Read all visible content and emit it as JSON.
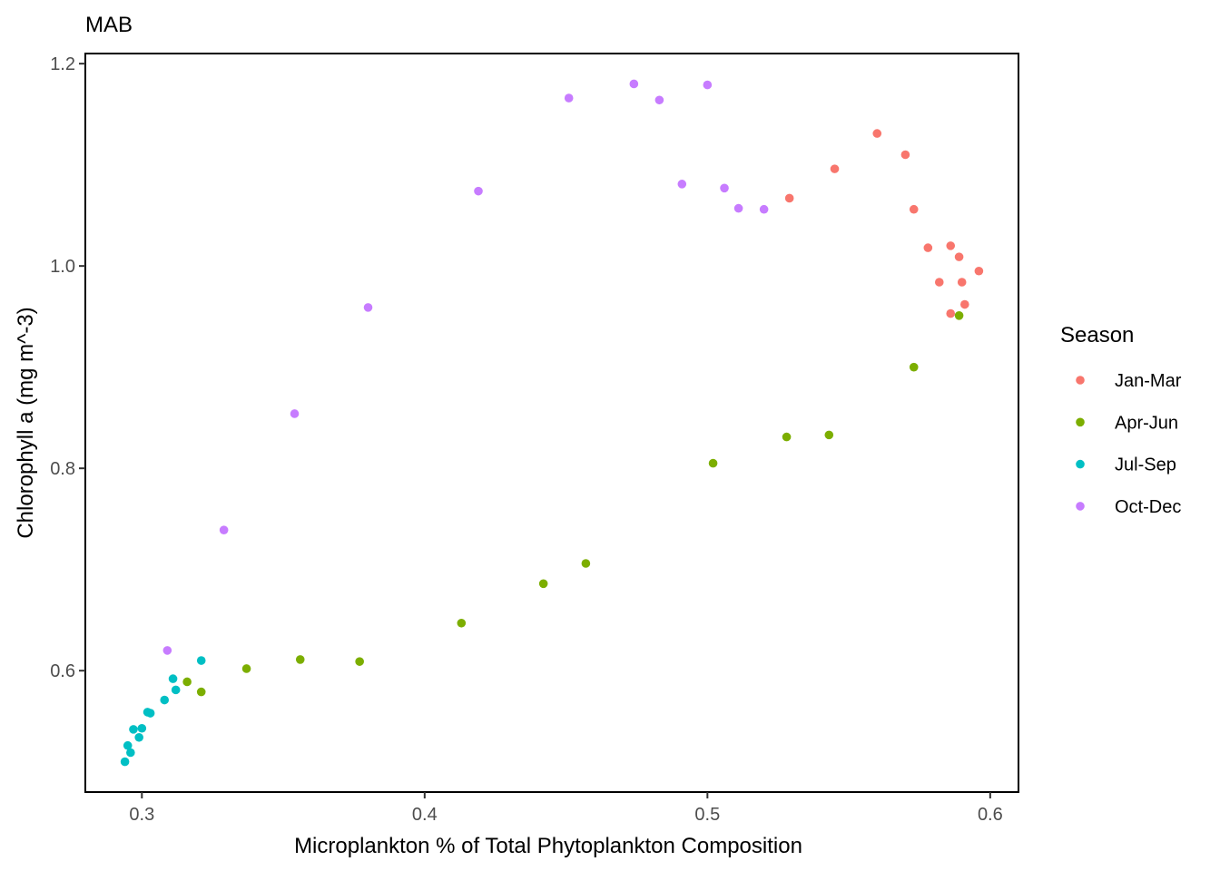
{
  "chart_data": {
    "type": "scatter",
    "title": "MAB",
    "xlabel": "Microplankton % of Total Phytoplankton Composition",
    "ylabel": "Chlorophyll a (mg m^-3)",
    "xlim": [
      0.28,
      0.61
    ],
    "ylim": [
      0.48,
      1.21
    ],
    "xticks": [
      0.3,
      0.4,
      0.5,
      0.6
    ],
    "xtick_labels": [
      "0.3",
      "0.4",
      "0.5",
      "0.6"
    ],
    "yticks": [
      0.6,
      0.8,
      1.0,
      1.2
    ],
    "ytick_labels": [
      "0.6",
      "0.8",
      "1.0",
      "1.2"
    ],
    "grid": false,
    "legend": {
      "title": "Season",
      "position": "right"
    },
    "series": [
      {
        "name": "Jan-Mar",
        "color": "#F8766D",
        "points": [
          [
            0.529,
            1.067
          ],
          [
            0.545,
            1.096
          ],
          [
            0.56,
            1.131
          ],
          [
            0.57,
            1.11
          ],
          [
            0.573,
            1.056
          ],
          [
            0.578,
            1.018
          ],
          [
            0.582,
            0.984
          ],
          [
            0.586,
            1.02
          ],
          [
            0.586,
            0.953
          ],
          [
            0.589,
            1.009
          ],
          [
            0.59,
            0.984
          ],
          [
            0.591,
            0.962
          ],
          [
            0.596,
            0.995
          ]
        ]
      },
      {
        "name": "Apr-Jun",
        "color": "#7CAE00",
        "points": [
          [
            0.316,
            0.589
          ],
          [
            0.321,
            0.579
          ],
          [
            0.337,
            0.602
          ],
          [
            0.356,
            0.611
          ],
          [
            0.377,
            0.609
          ],
          [
            0.413,
            0.647
          ],
          [
            0.442,
            0.686
          ],
          [
            0.457,
            0.706
          ],
          [
            0.502,
            0.805
          ],
          [
            0.528,
            0.831
          ],
          [
            0.543,
            0.833
          ],
          [
            0.573,
            0.9
          ],
          [
            0.589,
            0.951
          ]
        ]
      },
      {
        "name": "Jul-Sep",
        "color": "#00BFC4",
        "points": [
          [
            0.294,
            0.51
          ],
          [
            0.295,
            0.526
          ],
          [
            0.296,
            0.519
          ],
          [
            0.297,
            0.542
          ],
          [
            0.299,
            0.534
          ],
          [
            0.3,
            0.543
          ],
          [
            0.302,
            0.559
          ],
          [
            0.303,
            0.558
          ],
          [
            0.308,
            0.571
          ],
          [
            0.311,
            0.592
          ],
          [
            0.312,
            0.581
          ],
          [
            0.321,
            0.61
          ]
        ]
      },
      {
        "name": "Oct-Dec",
        "color": "#C77CFF",
        "points": [
          [
            0.309,
            0.62
          ],
          [
            0.329,
            0.739
          ],
          [
            0.354,
            0.854
          ],
          [
            0.38,
            0.959
          ],
          [
            0.419,
            1.074
          ],
          [
            0.451,
            1.166
          ],
          [
            0.474,
            1.18
          ],
          [
            0.483,
            1.164
          ],
          [
            0.491,
            1.081
          ],
          [
            0.5,
            1.179
          ],
          [
            0.506,
            1.077
          ],
          [
            0.511,
            1.057
          ],
          [
            0.52,
            1.056
          ]
        ]
      }
    ]
  }
}
